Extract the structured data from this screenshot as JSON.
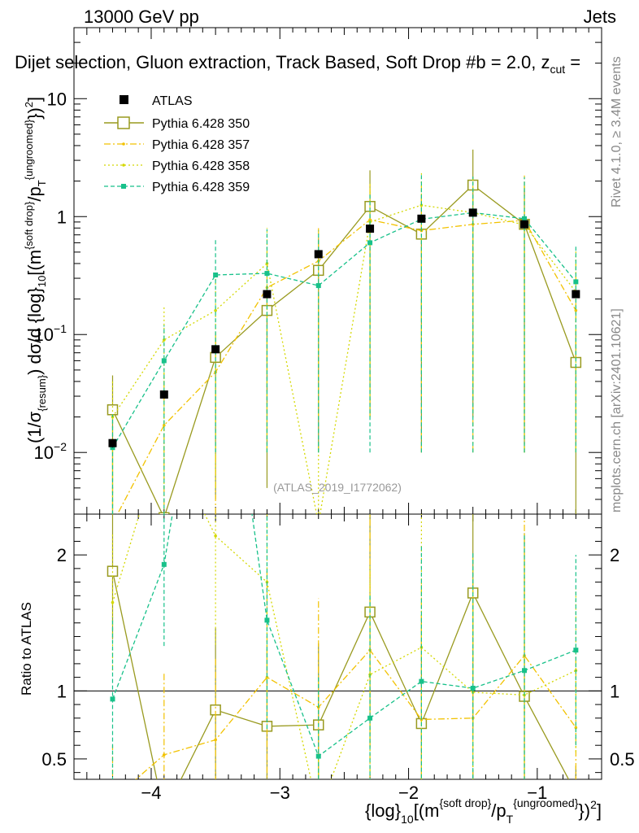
{
  "header": {
    "left": "13000 GeV pp",
    "right": "Jets",
    "selection": "Dijet selection, Gluon extraction, Track Based, Soft Drop #b = 2.0, z",
    "selection_sub": "cut",
    "selection_tail": " ="
  },
  "side": {
    "rivet": "Rivet 4.1.0, ≥ 3.4M events",
    "mcplots": "mcplots.cern.ch [arXiv:2401.10621]"
  },
  "watermark": "(ATLAS_2019_I1772062)",
  "colors": {
    "data": "#000000",
    "p350": "#999a1f",
    "p357": "#f2c200",
    "p358": "#d4d800",
    "p359": "#18c18a"
  },
  "chart_data": {
    "type": "line",
    "title": "",
    "x": [
      -4.3,
      -3.9,
      -3.5,
      -3.1,
      -2.7,
      -2.3,
      -1.9,
      -1.5,
      -1.1,
      -0.7
    ],
    "xlim": [
      -4.6,
      -0.5
    ],
    "xticks": [
      -4,
      -3,
      -2,
      -1
    ],
    "xtick_labels": [
      "−4",
      "−3",
      "−2",
      "−1"
    ],
    "xlabel": {
      "a": "{log}",
      "a_sub": "10",
      "b": "[(m",
      "b_sup": "{soft drop}",
      "c": "/p",
      "c_sub": "T",
      "c_sup": "{ungroomed}",
      "d": "})",
      "d_sup": "2",
      "e": "]"
    },
    "ylabel": {
      "a": "(1/σ",
      "a_sub": "{resum}",
      "b": ") dσ/d {log}",
      "b_sub": "10",
      "c": "[(m",
      "c_sup": "{soft drop}",
      "d": "/p",
      "d_sub": "T",
      "d_sup": "{ungroomed}",
      "e": "})",
      "e_sup": "2",
      "f": "]"
    },
    "main": {
      "yscale": "log",
      "ylim": [
        0.003,
        40
      ],
      "yticks": [
        {
          "value": 10,
          "base": "10",
          "exp": ""
        },
        {
          "value": 1,
          "base": "1",
          "exp": ""
        },
        {
          "value": 0.1,
          "base": "10",
          "exp": "−1"
        },
        {
          "value": 0.01,
          "base": "10",
          "exp": "−2"
        }
      ]
    },
    "ratio": {
      "ylabel": "Ratio to ATLAS",
      "ylim": [
        0.35,
        2.3
      ],
      "yticks": [
        {
          "value": 2,
          "label": "2"
        },
        {
          "value": 1,
          "label": "1"
        },
        {
          "value": 0.5,
          "label": "0.5"
        }
      ]
    },
    "data_series": {
      "name": "ATLAS",
      "values": [
        0.012,
        0.031,
        0.075,
        0.22,
        0.48,
        0.79,
        0.96,
        1.08,
        0.86,
        0.22
      ],
      "err": [
        0.001,
        0.002,
        0.005,
        0.01,
        0.02,
        0.03,
        0.03,
        0.03,
        0.03,
        0.01
      ]
    },
    "series": [
      {
        "name": "Pythia 6.428 350",
        "color_key": "p350",
        "style": "solid",
        "marker": "open-square",
        "values": [
          0.023,
          0.0028,
          0.064,
          0.16,
          0.35,
          1.22,
          0.71,
          1.85,
          0.86,
          0.058
        ],
        "err_lo": [
          0.02,
          0.0027,
          0.06,
          0.155,
          0.34,
          1.2,
          0.7,
          1.83,
          0.85,
          0.057
        ],
        "err_hi": [
          0.022,
          0.0,
          0.04,
          0.1,
          0.3,
          1.25,
          0.8,
          1.85,
          1.1,
          0.05
        ],
        "ratio": [
          1.88,
          0.1,
          0.86,
          0.74,
          0.75,
          1.58,
          0.76,
          1.72,
          0.96,
          0.25
        ],
        "ratio_err": [
          0.5,
          0.0,
          0.6,
          0.6,
          0.6,
          1.0,
          0.8,
          1.0,
          1.2,
          0.2
        ]
      },
      {
        "name": "Pythia 6.428 357",
        "color_key": "p357",
        "style": "dashdot",
        "marker": "dot",
        "values": [
          0.0025,
          0.017,
          0.048,
          0.25,
          0.42,
          0.94,
          0.76,
          0.86,
          0.93,
          0.16
        ],
        "err_lo": [
          0.0024,
          0.016,
          0.045,
          0.24,
          0.4,
          0.92,
          0.75,
          0.85,
          0.92,
          0.15
        ],
        "err_hi": [
          0.01,
          0.03,
          0.05,
          0.3,
          0.4,
          1.0,
          1.2,
          1.3,
          1.3,
          0.3
        ],
        "ratio": [
          0.2,
          0.53,
          0.64,
          1.1,
          0.88,
          1.3,
          0.79,
          0.8,
          1.26,
          0.73
        ],
        "ratio_err": [
          0.4,
          0.6,
          0.6,
          0.8,
          0.8,
          1.0,
          1.0,
          1.0,
          1.0,
          0.5
        ]
      },
      {
        "name": "Pythia 6.428 358",
        "color_key": "p358",
        "style": "dotted",
        "marker": "dot",
        "values": [
          0.02,
          0.09,
          0.16,
          0.4,
          0.0025,
          0.9,
          1.25,
          1.08,
          0.85,
          0.23
        ],
        "err_lo": [
          0.019,
          0.085,
          0.155,
          0.39,
          0.0024,
          0.88,
          1.2,
          1.05,
          0.84,
          0.22
        ],
        "err_hi": [
          0.02,
          0.08,
          0.15,
          0.4,
          0.01,
          1.0,
          1.2,
          1.0,
          1.0,
          0.3
        ],
        "ratio": [
          1.65,
          2.9,
          2.14,
          1.8,
          0.1,
          1.12,
          1.32,
          0.99,
          0.97,
          1.15
        ],
        "ratio_err": [
          0.5,
          0.5,
          0.8,
          0.8,
          0.4,
          0.8,
          1.0,
          1.0,
          1.0,
          0.6
        ]
      },
      {
        "name": "Pythia 6.428 359",
        "color_key": "p359",
        "style": "dashed",
        "marker": "filled-square",
        "values": [
          0.011,
          0.06,
          0.32,
          0.33,
          0.26,
          0.6,
          0.95,
          1.08,
          0.96,
          0.28
        ],
        "err_lo": [
          0.0105,
          0.058,
          0.31,
          0.32,
          0.25,
          0.59,
          0.94,
          1.07,
          0.95,
          0.27
        ],
        "err_hi": [
          0.01,
          0.06,
          0.32,
          0.45,
          0.5,
          1.0,
          1.4,
          1.1,
          1.2,
          0.3
        ],
        "ratio": [
          0.94,
          1.93,
          4.2,
          1.52,
          0.52,
          0.8,
          1.07,
          1.02,
          1.15,
          1.3
        ],
        "ratio_err": [
          0.6,
          0.6,
          0.5,
          0.8,
          0.6,
          0.9,
          1.0,
          1.0,
          1.0,
          0.7
        ]
      }
    ]
  }
}
